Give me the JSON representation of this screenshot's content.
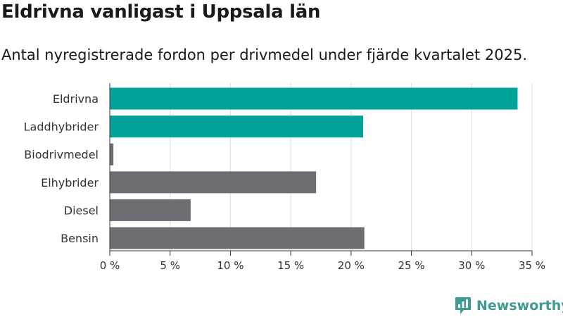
{
  "chart_data": {
    "type": "bar",
    "orientation": "horizontal",
    "title": "Eldrivna vanligast i Uppsala län",
    "subtitle": "Antal nyregistrerade fordon per drivmedel under fjärde kvartalet 2025.",
    "categories": [
      "Eldrivna",
      "Laddhybrider",
      "Biodrivmedel",
      "Elhybrider",
      "Diesel",
      "Bensin"
    ],
    "values": [
      33.8,
      21.0,
      0.3,
      17.1,
      6.7,
      21.1
    ],
    "highlight": [
      true,
      true,
      false,
      false,
      false,
      false
    ],
    "xlim": [
      0,
      35
    ],
    "xticks": [
      0,
      5,
      10,
      15,
      20,
      25,
      30,
      35
    ],
    "xtick_labels": [
      "0 %",
      "5 %",
      "10 %",
      "15 %",
      "20 %",
      "25 %",
      "30 %",
      "35 %"
    ],
    "grid": true,
    "colors": {
      "highlight": "#00a29a",
      "other": "#6e6d73",
      "grid": "#dddddd",
      "axis": "#333333"
    }
  },
  "branding": {
    "name": "Newsworthy",
    "icon": "newsworthy-logo-icon",
    "color": "#3d9b92"
  }
}
